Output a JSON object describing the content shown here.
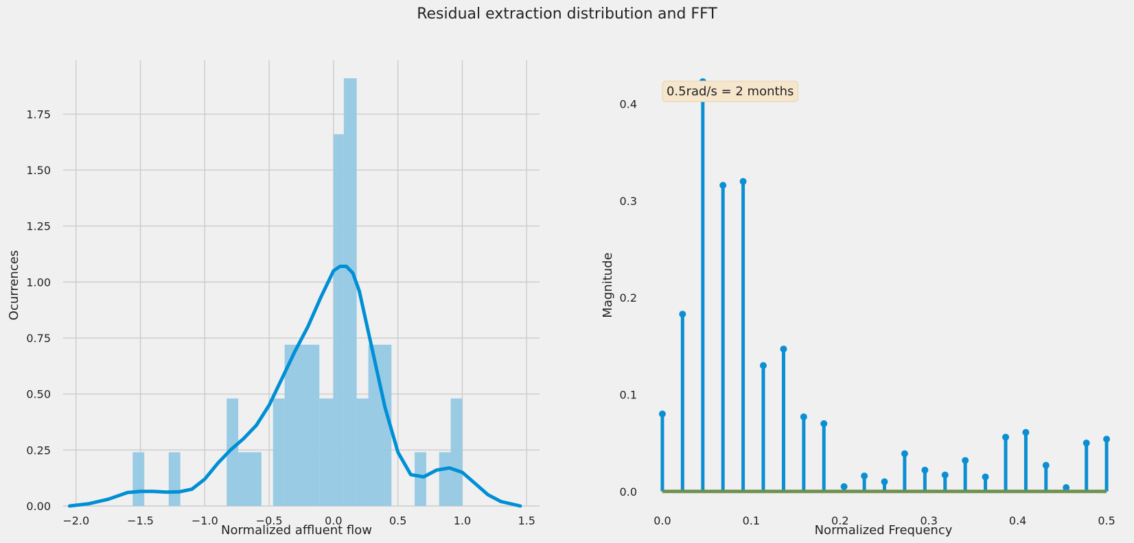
{
  "figure": {
    "title": "Residual extraction distribution and FFT",
    "background": "#f0f0f0"
  },
  "chart_data": [
    {
      "type": "histogram",
      "xlabel": "Normalized affluent flow",
      "ylabel": "Ocurrences",
      "xlim": [
        -2.1,
        1.6
      ],
      "ylim": [
        0,
        1.99
      ],
      "xticks": [
        -2.0,
        -1.5,
        -1.0,
        -0.5,
        0.0,
        0.5,
        1.0,
        1.5
      ],
      "xtick_labels": [
        "−2.0",
        "−1.5",
        "−1.0",
        "−0.5",
        "0.0",
        "0.5",
        "1.0",
        "1.5"
      ],
      "yticks": [
        0.0,
        0.25,
        0.5,
        0.75,
        1.0,
        1.25,
        1.5,
        1.75
      ],
      "ytick_labels": [
        "0.00",
        "0.25",
        "0.50",
        "0.75",
        "1.00",
        "1.25",
        "1.50",
        "1.75"
      ],
      "grid": true,
      "bar_color": "#93c8e4",
      "bins": [
        {
          "x0": -1.56,
          "x1": -1.47,
          "h": 0.24
        },
        {
          "x0": -1.28,
          "x1": -1.19,
          "h": 0.24
        },
        {
          "x0": -0.83,
          "x1": -0.74,
          "h": 0.48
        },
        {
          "x0": -0.74,
          "x1": -0.56,
          "h": 0.24
        },
        {
          "x0": -0.47,
          "x1": -0.38,
          "h": 0.48
        },
        {
          "x0": -0.38,
          "x1": -0.11,
          "h": 0.72
        },
        {
          "x0": -0.11,
          "x1": 0.0,
          "h": 0.48
        },
        {
          "x0": 0.0,
          "x1": 0.08,
          "h": 1.66
        },
        {
          "x0": 0.08,
          "x1": 0.18,
          "h": 1.91
        },
        {
          "x0": 0.18,
          "x1": 0.27,
          "h": 0.48
        },
        {
          "x0": 0.27,
          "x1": 0.45,
          "h": 0.72
        },
        {
          "x0": 0.63,
          "x1": 0.72,
          "h": 0.24
        },
        {
          "x0": 0.82,
          "x1": 0.91,
          "h": 0.24
        },
        {
          "x0": 0.91,
          "x1": 1.0,
          "h": 0.48
        }
      ],
      "kde": {
        "color": "#008fd5",
        "x": [
          -2.05,
          -1.9,
          -1.75,
          -1.6,
          -1.5,
          -1.4,
          -1.3,
          -1.2,
          -1.1,
          -1.0,
          -0.9,
          -0.8,
          -0.7,
          -0.6,
          -0.5,
          -0.4,
          -0.3,
          -0.2,
          -0.1,
          0.0,
          0.05,
          0.1,
          0.15,
          0.2,
          0.3,
          0.4,
          0.5,
          0.6,
          0.7,
          0.8,
          0.9,
          1.0,
          1.1,
          1.2,
          1.3,
          1.45
        ],
        "y": [
          0.0,
          0.01,
          0.03,
          0.06,
          0.065,
          0.065,
          0.062,
          0.063,
          0.075,
          0.12,
          0.19,
          0.25,
          0.3,
          0.36,
          0.45,
          0.57,
          0.69,
          0.8,
          0.93,
          1.05,
          1.07,
          1.07,
          1.04,
          0.96,
          0.7,
          0.44,
          0.24,
          0.14,
          0.13,
          0.16,
          0.17,
          0.15,
          0.1,
          0.05,
          0.02,
          0.0
        ]
      }
    },
    {
      "type": "stem",
      "xlabel": "Normalized Frequency",
      "ylabel": "Magnitude",
      "xlim": [
        -0.01,
        0.51
      ],
      "ylim": [
        -0.015,
        0.445
      ],
      "xticks": [
        0.0,
        0.1,
        0.2,
        0.3,
        0.4,
        0.5
      ],
      "xtick_labels": [
        "0.0",
        "0.1",
        "0.2",
        "0.3",
        "0.4",
        "0.5"
      ],
      "yticks": [
        0.0,
        0.1,
        0.2,
        0.3,
        0.4
      ],
      "ytick_labels": [
        "0.0",
        "0.1",
        "0.2",
        "0.3",
        "0.4"
      ],
      "grid": false,
      "stem_color": "#0b8fd2",
      "baseline_color": "#6d904f",
      "x": [
        0.0,
        0.0227,
        0.0455,
        0.0682,
        0.0909,
        0.1136,
        0.1364,
        0.1591,
        0.1818,
        0.2045,
        0.2273,
        0.25,
        0.2727,
        0.2955,
        0.3182,
        0.3409,
        0.3636,
        0.3864,
        0.4091,
        0.4318,
        0.4545,
        0.4773,
        0.5
      ],
      "y": [
        0.08,
        0.183,
        0.423,
        0.316,
        0.32,
        0.13,
        0.147,
        0.077,
        0.07,
        0.005,
        0.016,
        0.01,
        0.039,
        0.022,
        0.017,
        0.032,
        0.015,
        0.056,
        0.061,
        0.027,
        0.004,
        0.05,
        0.054
      ],
      "annotation": {
        "text": "0.5rad/s = 2 months",
        "x": 0.0,
        "y": 0.413
      }
    }
  ]
}
